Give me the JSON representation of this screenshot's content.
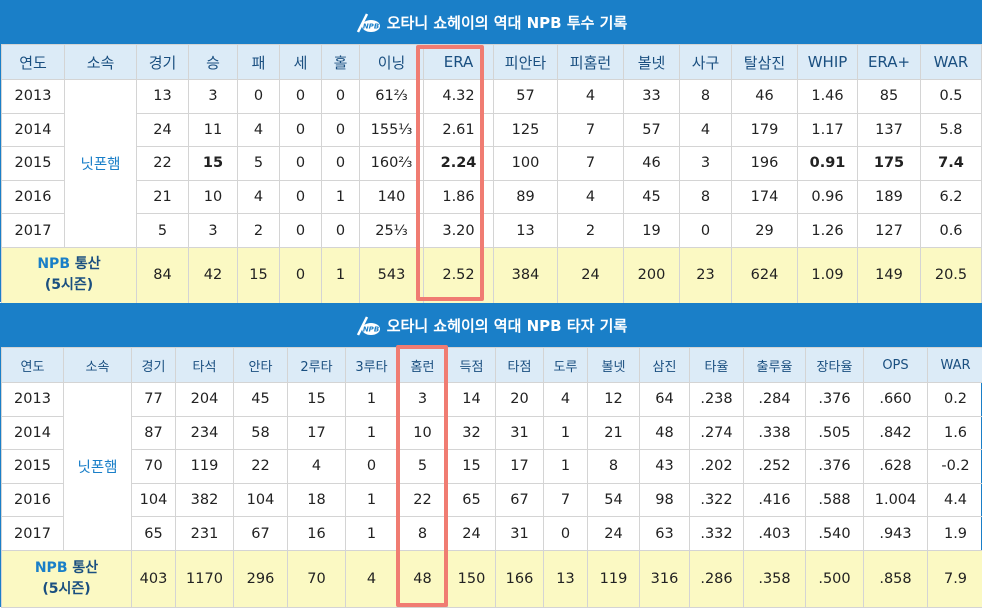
{
  "colors": {
    "header_blue": "#1a7fc8",
    "header_cell": "#dcebf7",
    "total_row": "#fbf9c3",
    "highlight": "#f07c72"
  },
  "pitching": {
    "title": "오타니 쇼헤이의 역대 NPB 투수 기록",
    "columns": [
      "연도",
      "소속",
      "경기",
      "승",
      "패",
      "세",
      "홀",
      "이닝",
      "ERA",
      "피안타",
      "피홈런",
      "볼넷",
      "사구",
      "탈삼진",
      "WHIP",
      "ERA+",
      "WAR"
    ],
    "team": "닛폰햄",
    "rows": [
      [
        "2013",
        "13",
        "3",
        "0",
        "0",
        "0",
        "61⅔",
        "4.32",
        "57",
        "4",
        "33",
        "8",
        "46",
        "1.46",
        "85",
        "0.5"
      ],
      [
        "2014",
        "24",
        "11",
        "4",
        "0",
        "0",
        "155⅓",
        "2.61",
        "125",
        "7",
        "57",
        "4",
        "179",
        "1.17",
        "137",
        "5.8"
      ],
      [
        "2015",
        "22",
        "15",
        "5",
        "0",
        "0",
        "160⅔",
        "2.24",
        "100",
        "7",
        "46",
        "3",
        "196",
        "0.91",
        "175",
        "7.4"
      ],
      [
        "2016",
        "21",
        "10",
        "4",
        "0",
        "1",
        "140",
        "1.86",
        "89",
        "4",
        "45",
        "8",
        "174",
        "0.96",
        "189",
        "6.2"
      ],
      [
        "2017",
        "5",
        "3",
        "2",
        "0",
        "0",
        "25⅓",
        "3.20",
        "13",
        "2",
        "19",
        "0",
        "29",
        "1.26",
        "127",
        "0.6"
      ]
    ],
    "total_label_1": "NPB",
    "total_label_2": "통산",
    "total_label_3": "(5시즌)",
    "total": [
      "84",
      "42",
      "15",
      "0",
      "1",
      "543",
      "2.52",
      "384",
      "24",
      "200",
      "23",
      "624",
      "1.09",
      "149",
      "20.5"
    ]
  },
  "batting": {
    "title": "오타니 쇼헤이의 역대 NPB 타자 기록",
    "columns": [
      "연도",
      "소속",
      "경기",
      "타석",
      "안타",
      "2루타",
      "3루타",
      "홈런",
      "득점",
      "타점",
      "도루",
      "볼넷",
      "삼진",
      "타율",
      "출루율",
      "장타율",
      "OPS",
      "WAR"
    ],
    "team": "닛폰햄",
    "rows": [
      [
        "2013",
        "77",
        "204",
        "45",
        "15",
        "1",
        "3",
        "14",
        "20",
        "4",
        "12",
        "64",
        ".238",
        ".284",
        ".376",
        ".660",
        "0.2"
      ],
      [
        "2014",
        "87",
        "234",
        "58",
        "17",
        "1",
        "10",
        "32",
        "31",
        "1",
        "21",
        "48",
        ".274",
        ".338",
        ".505",
        ".842",
        "1.6"
      ],
      [
        "2015",
        "70",
        "119",
        "22",
        "4",
        "0",
        "5",
        "15",
        "17",
        "1",
        "8",
        "43",
        ".202",
        ".252",
        ".376",
        ".628",
        "-0.2"
      ],
      [
        "2016",
        "104",
        "382",
        "104",
        "18",
        "1",
        "22",
        "65",
        "67",
        "7",
        "54",
        "98",
        ".322",
        ".416",
        ".588",
        "1.004",
        "4.4"
      ],
      [
        "2017",
        "65",
        "231",
        "67",
        "16",
        "1",
        "8",
        "24",
        "31",
        "0",
        "24",
        "63",
        ".332",
        ".403",
        ".540",
        ".943",
        "1.9"
      ]
    ],
    "total_label_1": "NPB",
    "total_label_2": "통산",
    "total_label_3": "(5시즌)",
    "total": [
      "403",
      "1170",
      "296",
      "70",
      "4",
      "48",
      "150",
      "166",
      "13",
      "119",
      "316",
      ".286",
      ".358",
      ".500",
      ".858",
      "7.9"
    ]
  }
}
